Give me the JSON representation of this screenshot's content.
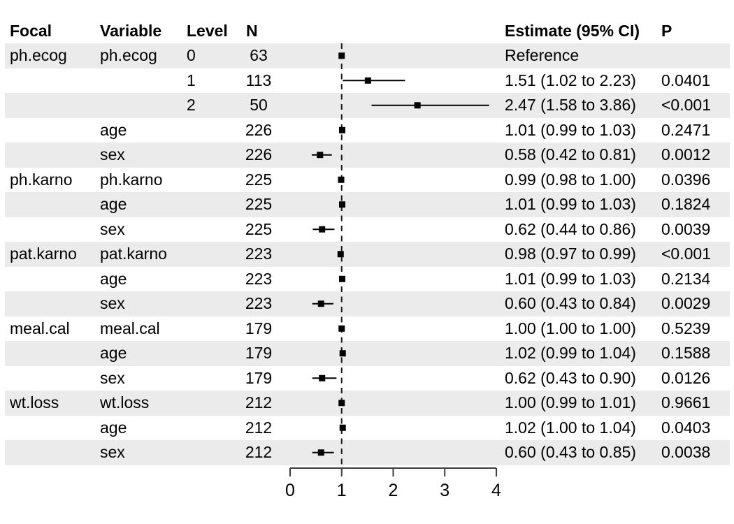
{
  "colors": {
    "stripe": "#ebebeb",
    "text": "#000000",
    "axis": "#3c3c3c",
    "marker": "#000000",
    "reference_line": "#1a1a1a",
    "background": "#ffffff"
  },
  "table": {
    "headers": {
      "focal": "Focal",
      "variable": "Variable",
      "level": "Level",
      "n": "N",
      "estimate": "Estimate (95% CI)",
      "p": "P"
    }
  },
  "chart_data": {
    "type": "forest",
    "title": "",
    "xlabel": "",
    "xlim": [
      0,
      4
    ],
    "x_tick_values": [
      0,
      1,
      2,
      3,
      4
    ],
    "x_ticks": [
      "0",
      "1",
      "2",
      "3",
      "4"
    ],
    "reference_line_x": 1,
    "grid": false,
    "legend": false,
    "rows": [
      {
        "focal": "ph.ecog",
        "variable": "ph.ecog",
        "level": "0",
        "n": "63",
        "estimate_text": "Reference",
        "p": "",
        "est": 1.0,
        "lo": null,
        "hi": null
      },
      {
        "focal": "",
        "variable": "",
        "level": "1",
        "n": "113",
        "estimate_text": "1.51 (1.02 to 2.23)",
        "p": "0.0401",
        "est": 1.51,
        "lo": 1.02,
        "hi": 2.23
      },
      {
        "focal": "",
        "variable": "",
        "level": "2",
        "n": "50",
        "estimate_text": "2.47 (1.58 to 3.86)",
        "p": "<0.001",
        "est": 2.47,
        "lo": 1.58,
        "hi": 3.86
      },
      {
        "focal": "",
        "variable": "age",
        "level": "",
        "n": "226",
        "estimate_text": "1.01 (0.99 to 1.03)",
        "p": "0.2471",
        "est": 1.01,
        "lo": 0.99,
        "hi": 1.03
      },
      {
        "focal": "",
        "variable": "sex",
        "level": "",
        "n": "226",
        "estimate_text": "0.58 (0.42 to 0.81)",
        "p": "0.0012",
        "est": 0.58,
        "lo": 0.42,
        "hi": 0.81
      },
      {
        "focal": "ph.karno",
        "variable": "ph.karno",
        "level": "",
        "n": "225",
        "estimate_text": "0.99 (0.98 to 1.00)",
        "p": "0.0396",
        "est": 0.99,
        "lo": 0.98,
        "hi": 1.0
      },
      {
        "focal": "",
        "variable": "age",
        "level": "",
        "n": "225",
        "estimate_text": "1.01 (0.99 to 1.03)",
        "p": "0.1824",
        "est": 1.01,
        "lo": 0.99,
        "hi": 1.03
      },
      {
        "focal": "",
        "variable": "sex",
        "level": "",
        "n": "225",
        "estimate_text": "0.62 (0.44 to 0.86)",
        "p": "0.0039",
        "est": 0.62,
        "lo": 0.44,
        "hi": 0.86
      },
      {
        "focal": "pat.karno",
        "variable": "pat.karno",
        "level": "",
        "n": "223",
        "estimate_text": "0.98 (0.97 to 0.99)",
        "p": "<0.001",
        "est": 0.98,
        "lo": 0.97,
        "hi": 0.99
      },
      {
        "focal": "",
        "variable": "age",
        "level": "",
        "n": "223",
        "estimate_text": "1.01 (0.99 to 1.03)",
        "p": "0.2134",
        "est": 1.01,
        "lo": 0.99,
        "hi": 1.03
      },
      {
        "focal": "",
        "variable": "sex",
        "level": "",
        "n": "223",
        "estimate_text": "0.60 (0.43 to 0.84)",
        "p": "0.0029",
        "est": 0.6,
        "lo": 0.43,
        "hi": 0.84
      },
      {
        "focal": "meal.cal",
        "variable": "meal.cal",
        "level": "",
        "n": "179",
        "estimate_text": "1.00 (1.00 to 1.00)",
        "p": "0.5239",
        "est": 1.0,
        "lo": 1.0,
        "hi": 1.0
      },
      {
        "focal": "",
        "variable": "age",
        "level": "",
        "n": "179",
        "estimate_text": "1.02 (0.99 to 1.04)",
        "p": "0.1588",
        "est": 1.02,
        "lo": 0.99,
        "hi": 1.04
      },
      {
        "focal": "",
        "variable": "sex",
        "level": "",
        "n": "179",
        "estimate_text": "0.62 (0.43 to 0.90)",
        "p": "0.0126",
        "est": 0.62,
        "lo": 0.43,
        "hi": 0.9
      },
      {
        "focal": "wt.loss",
        "variable": "wt.loss",
        "level": "",
        "n": "212",
        "estimate_text": "1.00 (0.99 to 1.01)",
        "p": "0.9661",
        "est": 1.0,
        "lo": 0.99,
        "hi": 1.01
      },
      {
        "focal": "",
        "variable": "age",
        "level": "",
        "n": "212",
        "estimate_text": "1.02 (1.00 to 1.04)",
        "p": "0.0403",
        "est": 1.02,
        "lo": 1.0,
        "hi": 1.04
      },
      {
        "focal": "",
        "variable": "sex",
        "level": "",
        "n": "212",
        "estimate_text": "0.60 (0.43 to 0.85)",
        "p": "0.0038",
        "est": 0.6,
        "lo": 0.43,
        "hi": 0.85
      }
    ]
  }
}
